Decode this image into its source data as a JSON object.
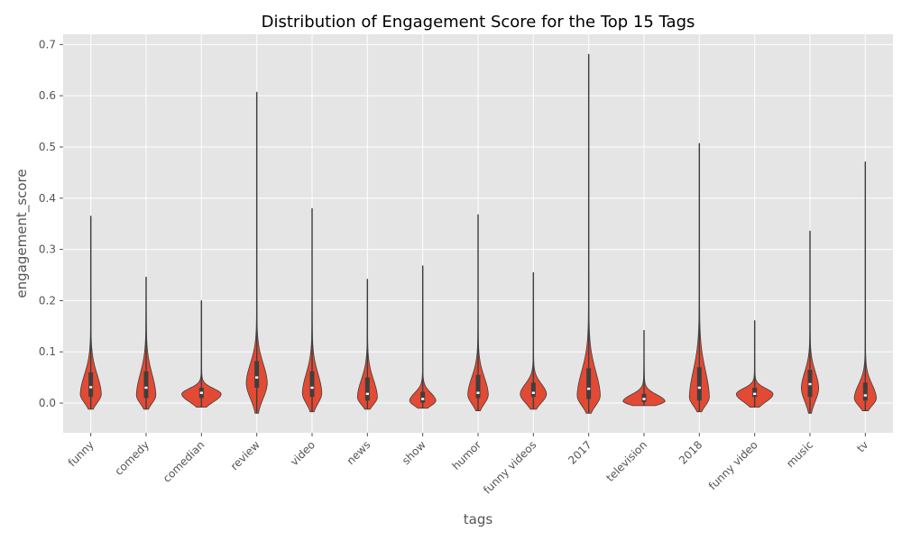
{
  "chart_data": {
    "type": "violin",
    "title": "Distribution of Engagement Score for the Top 15 Tags",
    "xlabel": "tags",
    "ylabel": "engagement_score",
    "ylim": [
      -0.058,
      0.72
    ],
    "yticks": [
      0.0,
      0.1,
      0.2,
      0.3,
      0.4,
      0.5,
      0.6,
      0.7
    ],
    "ytick_labels": [
      "0.0",
      "0.1",
      "0.2",
      "0.3",
      "0.4",
      "0.5",
      "0.6",
      "0.7"
    ],
    "grid": true,
    "legend": "none",
    "colors": {
      "violin": "#e24a33",
      "box": "#3f3f3f",
      "median": "#ffffff",
      "background": "#e5e5e5",
      "grid": "#ffffff"
    },
    "categories": [
      "funny",
      "comedy",
      "comedian",
      "review",
      "video",
      "news",
      "show",
      "humor",
      "funny videos",
      "2017",
      "television",
      "2018",
      "funny video",
      "music",
      "tv"
    ],
    "violins": [
      {
        "tag": "funny",
        "min": -0.012,
        "q1": 0.012,
        "median": 0.031,
        "q3": 0.06,
        "max": 0.365,
        "mode": 0.018,
        "peak_width": 0.4
      },
      {
        "tag": "comedy",
        "min": -0.012,
        "q1": 0.01,
        "median": 0.03,
        "q3": 0.062,
        "max": 0.246,
        "mode": 0.016,
        "peak_width": 0.37
      },
      {
        "tag": "comedian",
        "min": -0.008,
        "q1": 0.01,
        "median": 0.02,
        "q3": 0.03,
        "max": 0.2,
        "mode": 0.018,
        "peak_width": 0.75
      },
      {
        "tag": "review",
        "min": -0.02,
        "q1": 0.03,
        "median": 0.05,
        "q3": 0.082,
        "max": 0.607,
        "mode": 0.04,
        "peak_width": 0.4
      },
      {
        "tag": "video",
        "min": -0.017,
        "q1": 0.012,
        "median": 0.03,
        "q3": 0.062,
        "max": 0.38,
        "mode": 0.02,
        "peak_width": 0.37
      },
      {
        "tag": "news",
        "min": -0.012,
        "q1": 0.005,
        "median": 0.018,
        "q3": 0.05,
        "max": 0.242,
        "mode": 0.012,
        "peak_width": 0.38
      },
      {
        "tag": "show",
        "min": -0.01,
        "q1": 0.001,
        "median": 0.008,
        "q3": 0.022,
        "max": 0.268,
        "mode": 0.005,
        "peak_width": 0.5
      },
      {
        "tag": "humor",
        "min": -0.015,
        "q1": 0.01,
        "median": 0.02,
        "q3": 0.055,
        "max": 0.368,
        "mode": 0.017,
        "peak_width": 0.39
      },
      {
        "tag": "funny videos",
        "min": -0.012,
        "q1": 0.012,
        "median": 0.02,
        "q3": 0.04,
        "max": 0.255,
        "mode": 0.018,
        "peak_width": 0.5
      },
      {
        "tag": "2017",
        "min": -0.02,
        "q1": 0.008,
        "median": 0.028,
        "q3": 0.068,
        "max": 0.681,
        "mode": 0.015,
        "peak_width": 0.44
      },
      {
        "tag": "television",
        "min": -0.005,
        "q1": 0.002,
        "median": 0.008,
        "q3": 0.018,
        "max": 0.142,
        "mode": 0.004,
        "peak_width": 0.8
      },
      {
        "tag": "2018",
        "min": -0.017,
        "q1": 0.005,
        "median": 0.03,
        "q3": 0.07,
        "max": 0.507,
        "mode": 0.012,
        "peak_width": 0.38
      },
      {
        "tag": "funny video",
        "min": -0.008,
        "q1": 0.012,
        "median": 0.018,
        "q3": 0.03,
        "max": 0.161,
        "mode": 0.018,
        "peak_width": 0.7
      },
      {
        "tag": "music",
        "min": -0.02,
        "q1": 0.012,
        "median": 0.037,
        "q3": 0.065,
        "max": 0.336,
        "mode": 0.03,
        "peak_width": 0.33
      },
      {
        "tag": "tv",
        "min": -0.015,
        "q1": 0.005,
        "median": 0.015,
        "q3": 0.04,
        "max": 0.471,
        "mode": 0.01,
        "peak_width": 0.42
      }
    ]
  }
}
